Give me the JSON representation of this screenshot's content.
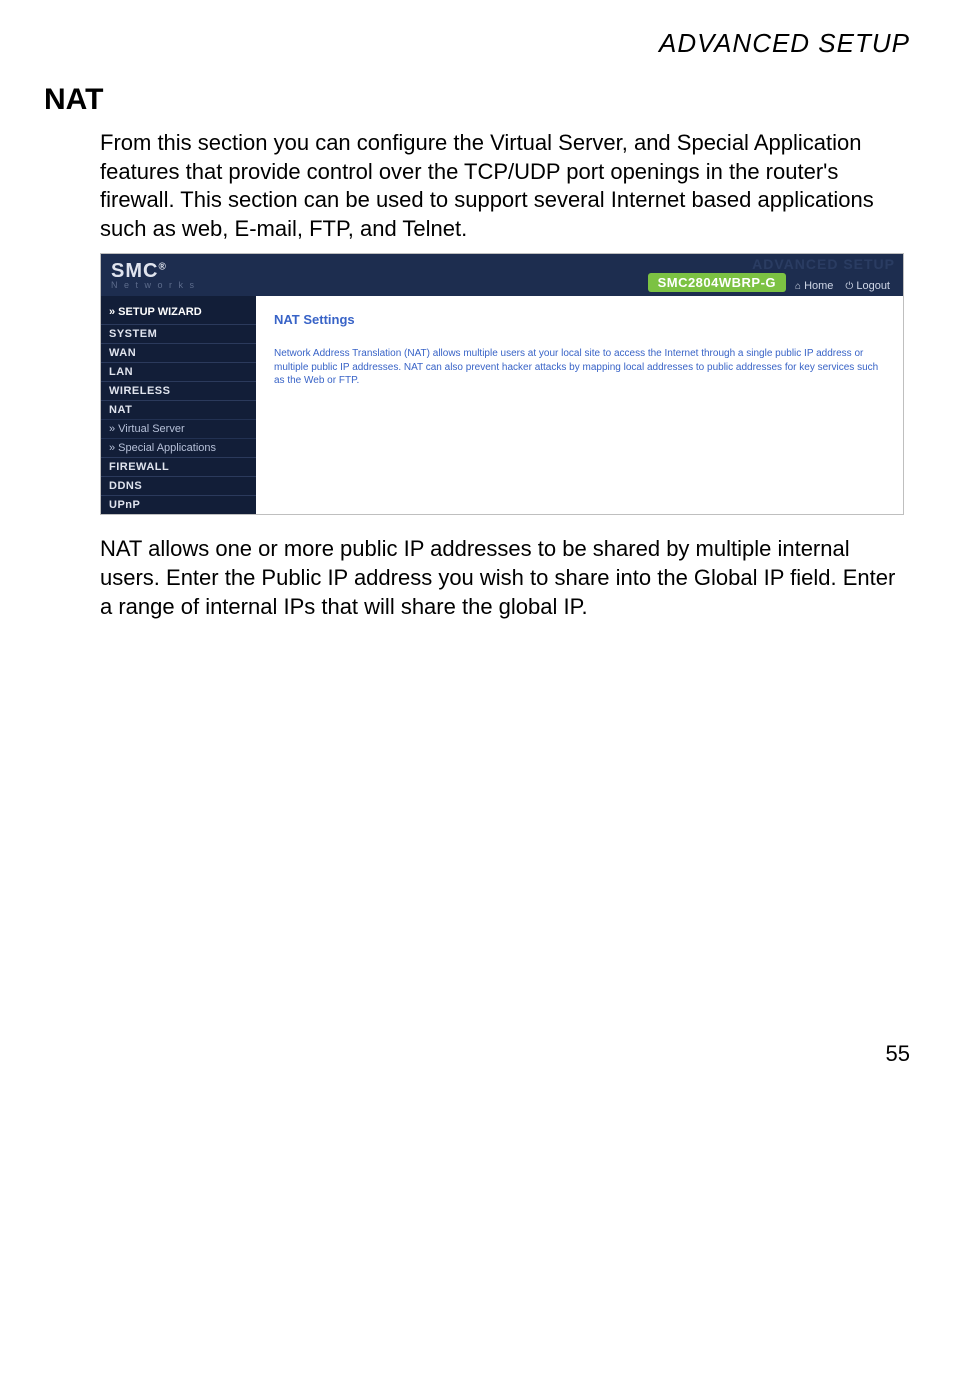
{
  "page": {
    "header": "ADVANCED SETUP",
    "section_title": "NAT",
    "intro": "From this section you can configure the Virtual Server, and Special Application features that provide control over the TCP/UDP port openings in the router's firewall. This section can be used to support several Internet based applications such as web, E-mail, FTP, and Telnet.",
    "body": "NAT allows one or more public IP addresses to be shared by multiple internal users. Enter the Public IP address you wish to share into the Global IP field. Enter a range of internal IPs that will share the global IP.",
    "number": "55"
  },
  "router": {
    "brand_main": "SMC",
    "brand_reg": "®",
    "brand_sub": "N e t w o r k s",
    "ghost": "ADVANCED SETUP",
    "model": "SMC2804WBRP-G",
    "home_icon": "⌂",
    "home_label": "Home",
    "logout_icon": "⏻",
    "logout_label": "Logout",
    "sidebar": {
      "wizard": "» SETUP WIZARD",
      "system": "SYSTEM",
      "wan": "WAN",
      "lan": "LAN",
      "wireless": "WIRELESS",
      "nat": "NAT",
      "virtual": "» Virtual Server",
      "special": "» Special Applications",
      "firewall": "FIREWALL",
      "ddns": "DDNS",
      "upnp": "UPnP"
    },
    "pane": {
      "title": "NAT Settings",
      "desc": "Network Address Translation (NAT) allows multiple users at your local site to access the Internet through a single public IP address or multiple public IP addresses. NAT can also prevent hacker attacks by mapping local addresses to public addresses for key services such as the Web or FTP."
    }
  }
}
